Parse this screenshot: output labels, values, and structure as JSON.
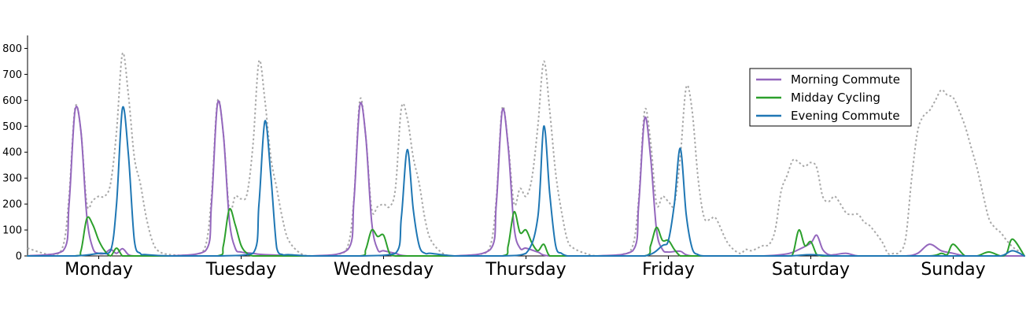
{
  "chart_data": {
    "type": "line",
    "title": "",
    "xlabel": "",
    "ylabel": "",
    "ylim": [
      0,
      850
    ],
    "yticks": [
      0,
      100,
      200,
      300,
      400,
      500,
      600,
      700,
      800
    ],
    "ytick_labels": [
      "0",
      "100",
      "200",
      "300",
      "400",
      "500",
      "600",
      "700",
      "800"
    ],
    "day_labels": [
      "Monday",
      "Tuesday",
      "Wednesday",
      "Thursday",
      "Friday",
      "Saturday",
      "Sunday"
    ],
    "legend": {
      "placement": "upper-right",
      "entries": [
        "Morning Commute",
        "Midday Cycling",
        "Evening Commute"
      ]
    },
    "series": [
      {
        "name": "Morning Commute",
        "color": "#9467bd",
        "style": "solid",
        "width": 2,
        "x": [
          0,
          6,
          7,
          8,
          9,
          10,
          11,
          12,
          13,
          14,
          15,
          16,
          17,
          18,
          20,
          24,
          30,
          31,
          32,
          33,
          34,
          35,
          36,
          38,
          40,
          48,
          54,
          55,
          56,
          57,
          58,
          59,
          60,
          62,
          64,
          72,
          78,
          79,
          80,
          81,
          82,
          83,
          84,
          86,
          88,
          96,
          102,
          103,
          104,
          105,
          106,
          107,
          108,
          110,
          112,
          120,
          124,
          128,
          130,
          132,
          133,
          134,
          135,
          136,
          138,
          140,
          144,
          148,
          150,
          152,
          154,
          156,
          158,
          160,
          162,
          164,
          166,
          168
        ],
        "y": [
          0,
          20,
          200,
          560,
          480,
          150,
          30,
          10,
          10,
          25,
          10,
          28,
          5,
          0,
          0,
          0,
          20,
          200,
          585,
          470,
          140,
          30,
          15,
          10,
          5,
          0,
          25,
          210,
          580,
          460,
          130,
          25,
          20,
          10,
          0,
          0,
          25,
          200,
          560,
          420,
          110,
          30,
          30,
          15,
          0,
          0,
          20,
          200,
          530,
          380,
          100,
          25,
          15,
          18,
          0,
          0,
          0,
          8,
          25,
          50,
          80,
          25,
          5,
          5,
          10,
          0,
          0,
          0,
          10,
          45,
          20,
          10,
          0,
          0,
          0,
          0,
          0,
          0
        ]
      },
      {
        "name": "Midday Cycling",
        "color": "#2ca02c",
        "style": "solid",
        "width": 2,
        "x": [
          0,
          8,
          9,
          10,
          11,
          12,
          13,
          14,
          15,
          16,
          17,
          18,
          20,
          24,
          32,
          33,
          34,
          35,
          36,
          37,
          38,
          40,
          48,
          56,
          57,
          58,
          59,
          60,
          61,
          62,
          64,
          72,
          80,
          81,
          82,
          83,
          84,
          85,
          86,
          87,
          88,
          90,
          96,
          104,
          105,
          106,
          107,
          108,
          109,
          110,
          111,
          112,
          114,
          120,
          128,
          129,
          130,
          131,
          132,
          133,
          134,
          136,
          144,
          152,
          154,
          155,
          156,
          158,
          160,
          162,
          164,
          165,
          166,
          168
        ],
        "y": [
          0,
          0,
          20,
          145,
          120,
          60,
          20,
          0,
          30,
          0,
          0,
          0,
          0,
          0,
          0,
          40,
          180,
          120,
          40,
          10,
          0,
          0,
          0,
          0,
          25,
          100,
          75,
          80,
          10,
          0,
          0,
          0,
          0,
          40,
          170,
          90,
          100,
          50,
          20,
          45,
          0,
          0,
          0,
          0,
          40,
          110,
          60,
          60,
          25,
          0,
          0,
          0,
          0,
          0,
          0,
          10,
          100,
          40,
          55,
          5,
          0,
          0,
          0,
          0,
          10,
          5,
          45,
          0,
          0,
          15,
          0,
          10,
          65,
          0
        ]
      },
      {
        "name": "Evening Commute",
        "color": "#1f77b4",
        "style": "solid",
        "width": 2,
        "x": [
          0,
          8,
          12,
          14,
          15,
          16,
          17,
          18,
          19,
          20,
          24,
          32,
          38,
          39,
          40,
          41,
          42,
          43,
          44,
          48,
          56,
          62,
          63,
          64,
          65,
          66,
          67,
          68,
          72,
          80,
          84,
          86,
          87,
          88,
          89,
          90,
          91,
          92,
          96,
          104,
          107,
          108,
          109,
          110,
          111,
          112,
          113,
          114,
          116,
          120,
          128,
          132,
          136,
          144,
          152,
          160,
          164,
          166,
          168
        ],
        "y": [
          0,
          0,
          10,
          20,
          200,
          570,
          390,
          60,
          10,
          5,
          0,
          0,
          10,
          200,
          520,
          310,
          30,
          5,
          5,
          0,
          0,
          10,
          150,
          410,
          180,
          40,
          10,
          10,
          0,
          0,
          10,
          150,
          500,
          240,
          40,
          10,
          0,
          0,
          0,
          0,
          40,
          60,
          200,
          415,
          160,
          30,
          5,
          0,
          0,
          0,
          0,
          5,
          0,
          0,
          0,
          0,
          0,
          20,
          0
        ]
      },
      {
        "name": "",
        "color": "#a8a8a8",
        "style": "dotted",
        "width": 2,
        "x": [
          0,
          4,
          6,
          7,
          8,
          9,
          10,
          11,
          12,
          13,
          14,
          15,
          16,
          17,
          18,
          19,
          20,
          21,
          22,
          24,
          28,
          30,
          31,
          32,
          33,
          34,
          35,
          36,
          37,
          38,
          39,
          40,
          41,
          42,
          43,
          44,
          46,
          48,
          52,
          54,
          55,
          56,
          57,
          58,
          59,
          60,
          61,
          62,
          63,
          64,
          65,
          66,
          67,
          68,
          70,
          72,
          76,
          78,
          79,
          80,
          81,
          82,
          83,
          84,
          85,
          86,
          87,
          88,
          89,
          90,
          91,
          92,
          94,
          96,
          100,
          102,
          103,
          104,
          105,
          106,
          107,
          108,
          109,
          110,
          111,
          112,
          113,
          114,
          115,
          116,
          118,
          120,
          121,
          122,
          123,
          124,
          125,
          126,
          127,
          128,
          129,
          130,
          131,
          132,
          133,
          134,
          135,
          136,
          137,
          138,
          139,
          140,
          141,
          142,
          144,
          145,
          146,
          147,
          148,
          149,
          150,
          151,
          152,
          153,
          154,
          155,
          156,
          157,
          158,
          159,
          160,
          161,
          162,
          163,
          164,
          165,
          166,
          167,
          168
        ],
        "y": [
          30,
          5,
          40,
          230,
          570,
          480,
          200,
          215,
          230,
          230,
          280,
          480,
          780,
          620,
          380,
          280,
          150,
          60,
          20,
          5,
          5,
          40,
          230,
          595,
          470,
          180,
          230,
          220,
          240,
          430,
          750,
          600,
          380,
          260,
          140,
          60,
          10,
          0,
          5,
          40,
          220,
          600,
          460,
          180,
          190,
          200,
          190,
          260,
          570,
          530,
          380,
          280,
          140,
          60,
          10,
          0,
          5,
          40,
          220,
          570,
          430,
          200,
          260,
          230,
          300,
          500,
          750,
          560,
          320,
          170,
          60,
          30,
          10,
          0,
          5,
          40,
          220,
          560,
          440,
          200,
          230,
          210,
          200,
          380,
          650,
          560,
          300,
          150,
          140,
          145,
          50,
          10,
          25,
          20,
          30,
          40,
          45,
          100,
          250,
          310,
          370,
          360,
          345,
          360,
          340,
          230,
          210,
          230,
          200,
          165,
          160,
          160,
          130,
          115,
          55,
          10,
          10,
          15,
          70,
          300,
          480,
          540,
          560,
          600,
          640,
          620,
          610,
          560,
          500,
          420,
          340,
          240,
          145,
          110,
          90,
          60,
          35,
          20,
          15
        ]
      }
    ]
  }
}
